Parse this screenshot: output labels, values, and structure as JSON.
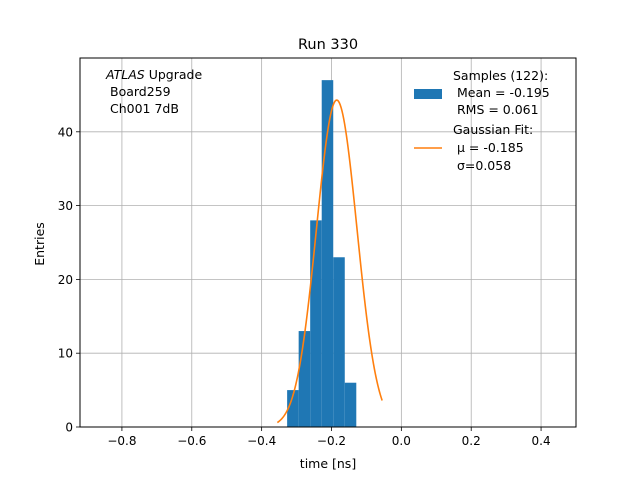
{
  "chart_data": {
    "type": "bar",
    "title": "Run 330",
    "xlabel": "time [ns]",
    "ylabel": "Entries",
    "xlim": [
      -0.92,
      0.5
    ],
    "ylim": [
      0,
      50
    ],
    "grid": true,
    "x_ticks": [
      -0.8,
      -0.6,
      -0.4,
      -0.2,
      0.0,
      0.2,
      0.4
    ],
    "x_tick_labels": [
      "−0.8",
      "−0.6",
      "−0.4",
      "−0.2",
      "0.0",
      "0.2",
      "0.4"
    ],
    "y_ticks": [
      0,
      10,
      20,
      30,
      40
    ],
    "y_tick_labels": [
      "0",
      "10",
      "20",
      "30",
      "40"
    ],
    "annotation": {
      "italic": "ATLAS",
      "line1_rest": " Upgrade",
      "line2": "Board259",
      "line3": "Ch001 7dB"
    },
    "histogram": {
      "bin_edges": [
        -0.36,
        -0.327,
        -0.294,
        -0.261,
        -0.228,
        -0.195,
        -0.162,
        -0.129,
        -0.096,
        -0.063,
        -0.03
      ],
      "counts": [
        0,
        5,
        13,
        28,
        47,
        23,
        6,
        0,
        0,
        0
      ],
      "color": "#1f77b4"
    },
    "fit": {
      "mu": -0.185,
      "sigma": 0.058,
      "amplitude": 44.3,
      "x_range": [
        -0.355,
        -0.055
      ],
      "color": "#ff7f0e"
    },
    "legend": {
      "position": "top-right",
      "entries": [
        {
          "label_lines": [
            "Samples (122):",
            " Mean = -0.195",
            " RMS = 0.061"
          ],
          "marker": "patch",
          "color": "#1f77b4"
        },
        {
          "label_lines": [
            "Gaussian Fit:",
            " μ = -0.185",
            " σ=0.058"
          ],
          "marker": "line",
          "color": "#ff7f0e"
        }
      ]
    }
  }
}
